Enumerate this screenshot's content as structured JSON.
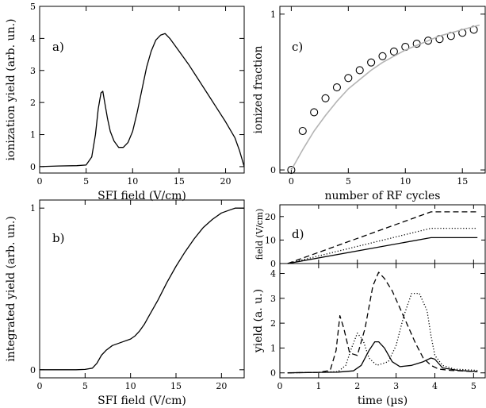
{
  "chart_data": [
    {
      "panel": "a)",
      "type": "line",
      "xlabel": "SFI field (V/cm)",
      "ylabel": "ionization yield (arb. un.)",
      "xlim": [
        0,
        22
      ],
      "ylim": [
        -0.2,
        5
      ],
      "xticks": [
        0,
        5,
        10,
        15,
        20
      ],
      "yticks": [
        0,
        1,
        2,
        3,
        4,
        5
      ],
      "series": [
        {
          "style": "solid",
          "x": [
            0,
            2,
            4,
            5,
            5.6,
            6,
            6.3,
            6.6,
            6.8,
            7.0,
            7.3,
            7.6,
            8.0,
            8.5,
            9.0,
            9.5,
            10,
            10.5,
            11,
            11.5,
            12,
            12.5,
            13,
            13.5,
            14,
            15,
            16,
            17,
            18,
            19,
            20,
            21,
            21.5,
            22
          ],
          "y": [
            0.0,
            0.02,
            0.03,
            0.05,
            0.3,
            1.0,
            1.8,
            2.3,
            2.35,
            2.0,
            1.5,
            1.1,
            0.8,
            0.6,
            0.6,
            0.75,
            1.1,
            1.7,
            2.4,
            3.1,
            3.6,
            3.95,
            4.1,
            4.15,
            4.0,
            3.6,
            3.2,
            2.75,
            2.3,
            1.85,
            1.4,
            0.9,
            0.5,
            0.0
          ]
        }
      ]
    },
    {
      "panel": "b)",
      "type": "line",
      "xlabel": "SFI field (V/cm)",
      "ylabel": "integrated yield (arb. un.)",
      "xlim": [
        0,
        22.5
      ],
      "ylim": [
        -0.05,
        1.05
      ],
      "xticks": [
        0,
        5,
        10,
        15,
        20
      ],
      "yticks": [
        0,
        1
      ],
      "series": [
        {
          "style": "solid",
          "x": [
            0,
            2,
            4,
            5,
            5.8,
            6.3,
            6.8,
            7.3,
            8,
            9,
            10,
            10.5,
            11,
            11.5,
            12,
            13,
            14,
            15,
            16,
            17,
            18,
            19,
            20,
            21,
            21.5,
            22,
            22.5
          ],
          "y": [
            0.0,
            0.0,
            0.0,
            0.002,
            0.01,
            0.04,
            0.09,
            0.12,
            0.15,
            0.17,
            0.19,
            0.21,
            0.24,
            0.28,
            0.33,
            0.43,
            0.54,
            0.64,
            0.73,
            0.81,
            0.88,
            0.93,
            0.97,
            0.99,
            1.0,
            1.0,
            1.0
          ]
        }
      ]
    },
    {
      "panel": "c)",
      "type": "scatter",
      "xlabel": "number of RF cycles",
      "ylabel": "ionized fraction",
      "xlim": [
        -1,
        17
      ],
      "ylim": [
        -0.02,
        1.05
      ],
      "xticks": [
        0,
        5,
        10,
        15
      ],
      "yticks": [
        0,
        1
      ],
      "series": [
        {
          "style": "open-circle",
          "x": [
            0,
            1,
            2,
            3,
            4,
            5,
            6,
            7,
            8,
            9,
            10,
            11,
            12,
            13,
            14,
            15,
            16
          ],
          "y": [
            0.0,
            0.25,
            0.37,
            0.46,
            0.53,
            0.59,
            0.64,
            0.69,
            0.73,
            0.76,
            0.79,
            0.81,
            0.83,
            0.84,
            0.86,
            0.88,
            0.9
          ]
        },
        {
          "style": "gray-line",
          "color": "#b4b4b4",
          "x": [
            0,
            1,
            2,
            3,
            4,
            5,
            6,
            7,
            8,
            9,
            10,
            11,
            12,
            13,
            14,
            15,
            16,
            16.5
          ],
          "y": [
            0.0,
            0.13,
            0.25,
            0.35,
            0.44,
            0.52,
            0.58,
            0.64,
            0.69,
            0.73,
            0.77,
            0.8,
            0.83,
            0.86,
            0.88,
            0.9,
            0.92,
            0.93
          ]
        }
      ]
    },
    {
      "panel": "d)",
      "type": "line",
      "ylabel": "field (V/cm)",
      "xlim": [
        0,
        5.3
      ],
      "ylim": [
        0,
        25
      ],
      "xticks": [
        0,
        1,
        2,
        3,
        4,
        5
      ],
      "yticks": [
        0,
        10,
        20
      ],
      "series": [
        {
          "style": "solid",
          "x": [
            0.2,
            3.9,
            5.1
          ],
          "y": [
            0,
            11,
            11
          ]
        },
        {
          "style": "dotted",
          "x": [
            0.2,
            3.9,
            5.1
          ],
          "y": [
            0,
            15,
            15
          ]
        },
        {
          "style": "dashed",
          "x": [
            0.2,
            3.9,
            5.1
          ],
          "y": [
            0,
            22,
            22
          ]
        }
      ]
    },
    {
      "panel": "d-lower",
      "type": "line",
      "xlabel": "time (µs)",
      "ylabel": "yield (a. u.)",
      "xlim": [
        0,
        5.3
      ],
      "ylim": [
        -0.2,
        4.4
      ],
      "xticks": [
        0,
        1,
        2,
        3,
        4,
        5
      ],
      "yticks": [
        0,
        1,
        2,
        3,
        4
      ],
      "series": [
        {
          "style": "solid",
          "x": [
            0.2,
            1.0,
            1.5,
            1.9,
            2.1,
            2.3,
            2.45,
            2.55,
            2.7,
            2.9,
            3.1,
            3.4,
            3.7,
            3.9,
            4.0,
            4.2,
            4.6,
            5.1
          ],
          "y": [
            0.0,
            0.02,
            0.03,
            0.08,
            0.3,
            0.9,
            1.25,
            1.25,
            1.0,
            0.45,
            0.25,
            0.3,
            0.45,
            0.6,
            0.55,
            0.2,
            0.1,
            0.05
          ]
        },
        {
          "style": "dotted",
          "x": [
            0.2,
            1.0,
            1.5,
            1.7,
            1.85,
            2.0,
            2.15,
            2.3,
            2.5,
            2.8,
            3.0,
            3.2,
            3.4,
            3.6,
            3.8,
            3.9,
            4.0,
            4.2,
            4.5,
            5.1
          ],
          "y": [
            0.0,
            0.02,
            0.05,
            0.3,
            1.0,
            1.6,
            1.3,
            0.6,
            0.3,
            0.45,
            1.1,
            2.3,
            3.2,
            3.2,
            2.5,
            1.5,
            0.7,
            0.3,
            0.15,
            0.1
          ]
        },
        {
          "style": "dashed",
          "x": [
            0.2,
            1.0,
            1.3,
            1.45,
            1.55,
            1.65,
            1.8,
            2.0,
            2.2,
            2.4,
            2.55,
            2.7,
            2.9,
            3.1,
            3.3,
            3.5,
            3.7,
            3.9,
            4.1,
            4.4,
            5.1
          ],
          "y": [
            0.0,
            0.02,
            0.1,
            0.9,
            2.3,
            1.8,
            0.8,
            0.7,
            1.8,
            3.5,
            4.05,
            3.8,
            3.3,
            2.6,
            1.9,
            1.2,
            0.6,
            0.3,
            0.15,
            0.1,
            0.05
          ]
        }
      ]
    }
  ]
}
